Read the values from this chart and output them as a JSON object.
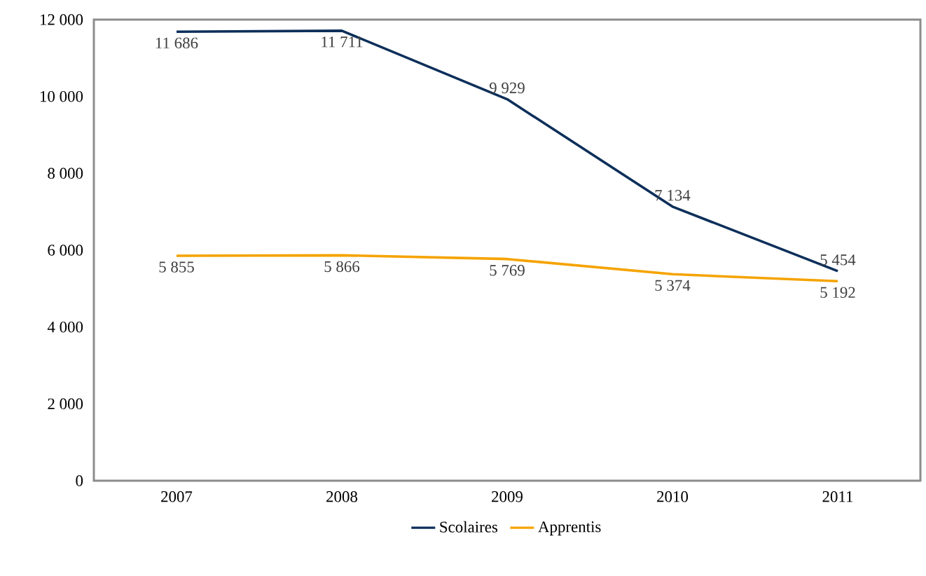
{
  "chart_data": {
    "type": "line",
    "categories": [
      "2007",
      "2008",
      "2009",
      "2010",
      "2011"
    ],
    "series": [
      {
        "name": "Scolaires",
        "color": "#0d2f5a",
        "values": [
          11686,
          11711,
          9929,
          7134,
          5454
        ],
        "value_labels": [
          "11 686",
          "11 711",
          "9 929",
          "7 134",
          "5 454"
        ]
      },
      {
        "name": "Apprentis",
        "color": "#f5a300",
        "values": [
          5855,
          5866,
          5769,
          5374,
          5192
        ],
        "value_labels": [
          "5 855",
          "5 866",
          "5 769",
          "5 374",
          "5 192"
        ]
      }
    ],
    "ylim": [
      0,
      12000
    ],
    "yticks": [
      {
        "value": 0,
        "label": "0"
      },
      {
        "value": 2000,
        "label": "2 000"
      },
      {
        "value": 4000,
        "label": "4 000"
      },
      {
        "value": 6000,
        "label": "6 000"
      },
      {
        "value": 8000,
        "label": "8 000"
      },
      {
        "value": 10000,
        "label": "10 000"
      },
      {
        "value": 12000,
        "label": "12 000"
      }
    ],
    "grid": false,
    "legend": "bottom",
    "marker": "none",
    "line_style": "solid"
  }
}
